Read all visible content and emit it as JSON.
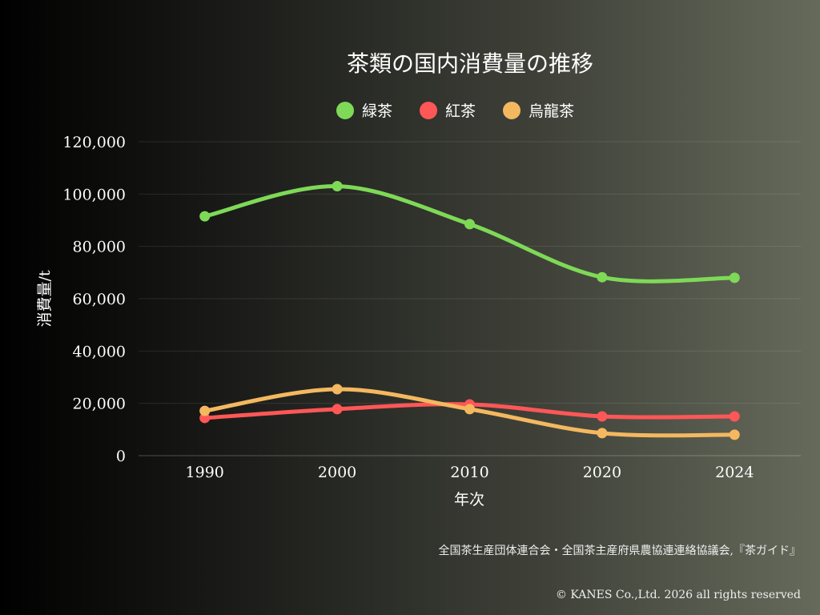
{
  "chart_data": {
    "type": "line",
    "title": "茶類の国内消費量の推移",
    "xlabel": "年次",
    "ylabel": "消費量/t",
    "categories": [
      "1990",
      "2000",
      "2010",
      "2020",
      "2024"
    ],
    "ylim": [
      0,
      120000
    ],
    "yticks": [
      "0",
      "20,000",
      "40,000",
      "60,000",
      "80,000",
      "100,000",
      "120,000"
    ],
    "grid": true,
    "legend_position": "top",
    "series": [
      {
        "name": "緑茶",
        "color": "#7ed957",
        "values": [
          91500,
          103000,
          88500,
          68200,
          68000
        ]
      },
      {
        "name": "紅茶",
        "color": "#ff5757",
        "values": [
          14400,
          17800,
          19600,
          15000,
          15000
        ]
      },
      {
        "name": "烏龍茶",
        "color": "#f4b860",
        "values": [
          17100,
          25400,
          17800,
          8600,
          8000
        ]
      }
    ]
  },
  "source": "全国茶生産団体連合会・全国茶主産府県農協連連絡協議会,『茶ガイド』",
  "copyright": "© KANES Co.,Ltd. 2026 all rights reserved"
}
